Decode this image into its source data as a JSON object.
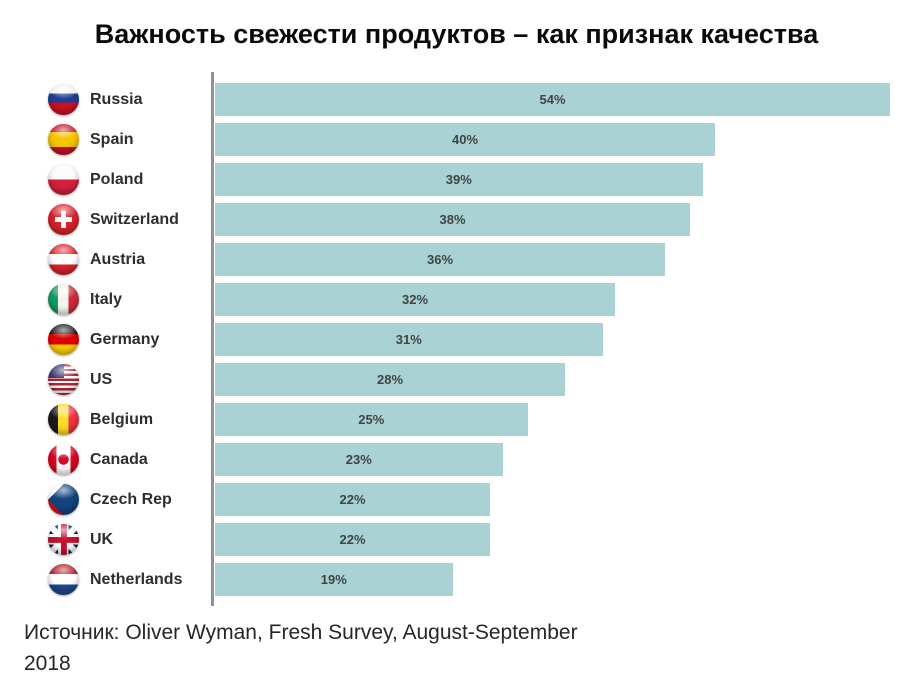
{
  "title": "Важность свежести продуктов – как признак качества",
  "source": {
    "lines": [
      "Источник: Oliver Wyman, Fresh Survey, August-September",
      "2018"
    ]
  },
  "colors": {
    "bar": "#a9d2d4",
    "axis": "#8f9396",
    "value_label": "#3f4444",
    "country_label": "#2e2e2e",
    "title_text": "#0b0b0b",
    "source_text": "#262626",
    "background": "#ffffff"
  },
  "chart_data": {
    "type": "bar",
    "orientation": "horizontal",
    "title": "Важность свежести продуктов – как признак качества",
    "xlabel": "",
    "ylabel": "",
    "value_suffix": "%",
    "xlim": [
      0,
      56
    ],
    "grid": false,
    "legend": false,
    "categories": [
      "Russia",
      "Spain",
      "Poland",
      "Switzerland",
      "Austria",
      "Italy",
      "Germany",
      "US",
      "Belgium",
      "Canada",
      "Czech Rep",
      "UK",
      "Netherlands"
    ],
    "values": [
      54,
      40,
      39,
      38,
      36,
      32,
      31,
      28,
      25,
      23,
      22,
      22,
      19
    ],
    "value_labels": [
      "54%",
      "40%",
      "39%",
      "38%",
      "36%",
      "32%",
      "31%",
      "28%",
      "25%",
      "23%",
      "22%",
      "22%",
      "19%"
    ],
    "flag_icons": [
      "flag-russia",
      "flag-spain",
      "flag-poland",
      "flag-switzerland",
      "flag-austria",
      "flag-italy",
      "flag-germany",
      "flag-us",
      "flag-belgium",
      "flag-canada",
      "flag-czech",
      "flag-uk",
      "flag-netherlands"
    ]
  }
}
